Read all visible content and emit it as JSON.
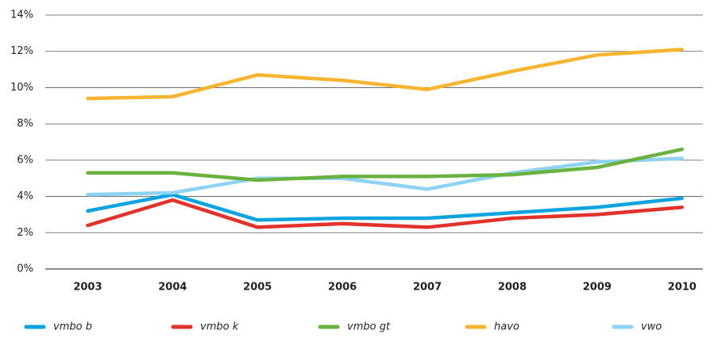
{
  "chart_data": {
    "type": "line",
    "categories": [
      "2003",
      "2004",
      "2005",
      "2006",
      "2007",
      "2008",
      "2009",
      "2010"
    ],
    "series": [
      {
        "name": "vmbo b",
        "color": "#0da2e0",
        "values": [
          3.2,
          4.1,
          2.7,
          2.8,
          2.8,
          3.1,
          3.4,
          3.9
        ]
      },
      {
        "name": "vmbo k",
        "color": "#e2322c",
        "values": [
          2.4,
          3.8,
          2.3,
          2.5,
          2.3,
          2.8,
          3.0,
          3.4
        ]
      },
      {
        "name": "vwo",
        "color": "#8ed3f2",
        "values": [
          4.1,
          4.2,
          5.0,
          5.0,
          4.4,
          5.3,
          5.9,
          6.1
        ]
      },
      {
        "name": "vmbo gt",
        "color": "#6ab23f",
        "values": [
          5.3,
          5.3,
          4.9,
          5.1,
          5.1,
          5.2,
          5.6,
          6.6
        ]
      },
      {
        "name": "havo",
        "color": "#f6b530",
        "values": [
          9.4,
          9.5,
          10.7,
          10.4,
          9.9,
          10.9,
          11.8,
          12.1
        ]
      }
    ],
    "legend_order": [
      0,
      1,
      3,
      4,
      2
    ],
    "ylim": [
      0,
      14
    ],
    "yticks": [
      {
        "value": 0,
        "label": "0%"
      },
      {
        "value": 2,
        "label": "2%"
      },
      {
        "value": 4,
        "label": "4%"
      },
      {
        "value": 6,
        "label": "6%"
      },
      {
        "value": 8,
        "label": "8%"
      },
      {
        "value": 10,
        "label": "10%"
      },
      {
        "value": 12,
        "label": "12%"
      },
      {
        "value": 14,
        "label": "14%"
      }
    ],
    "grid": true,
    "legend": "bottom"
  }
}
